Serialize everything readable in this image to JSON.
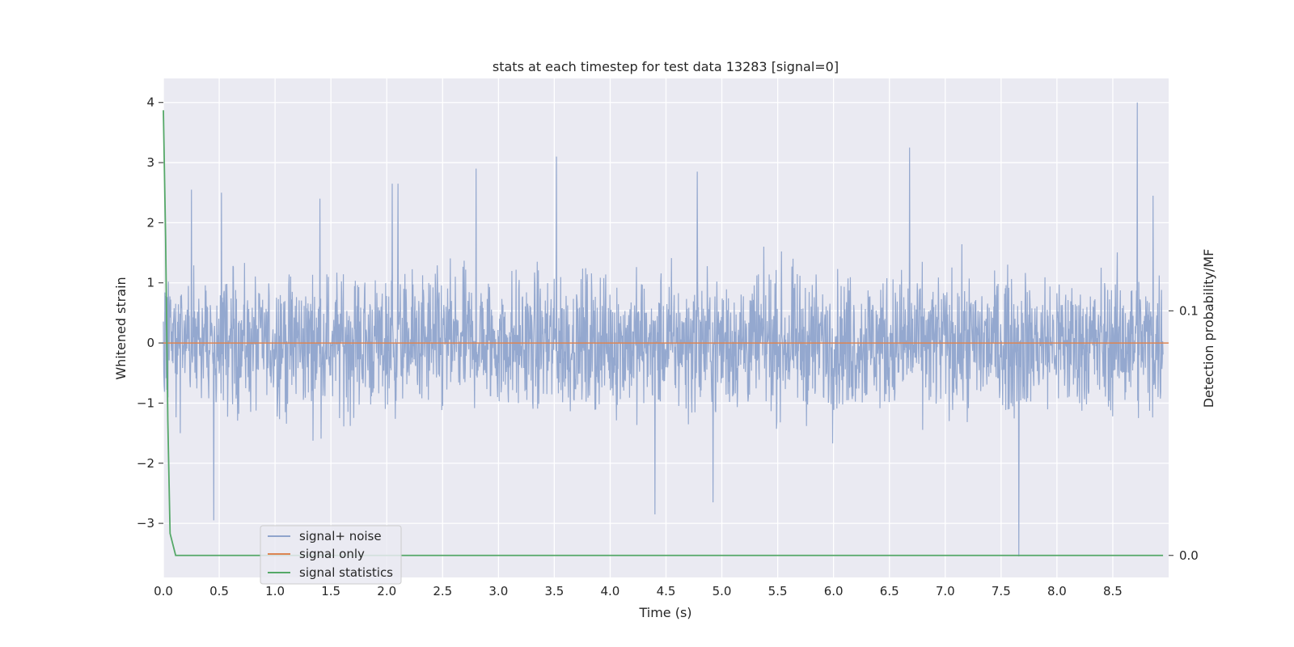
{
  "chart_data": {
    "type": "line",
    "title": "stats at each timestep for test data 13283 [signal=0]",
    "xlabel": "Time (s)",
    "ylabel": "Whitened strain",
    "y2label": "Detection probability/MF",
    "xlim": [
      0.0,
      9.0
    ],
    "ylim": [
      -3.9,
      4.4
    ],
    "y2lim": [
      -0.009,
      0.195
    ],
    "xticks": [
      "0.0",
      "0.5",
      "1.0",
      "1.5",
      "2.0",
      "2.5",
      "3.0",
      "3.5",
      "4.0",
      "4.5",
      "5.0",
      "5.5",
      "6.0",
      "6.5",
      "7.0",
      "7.5",
      "8.0",
      "8.5"
    ],
    "yticks": [
      "−3",
      "−2",
      "−1",
      "0",
      "1",
      "2",
      "3",
      "4"
    ],
    "y2ticks": [
      "0.0",
      "0.1"
    ],
    "grid": true,
    "legend_position": "lower-left",
    "colors": {
      "noise": "#8fa4cc",
      "signal": "#dd8452",
      "stats": "#55a868",
      "plot_bg": "#eaeaf2",
      "grid": "#ffffff"
    },
    "series": [
      {
        "name": "signal+ noise",
        "axis": "left",
        "description_values": "dense whitened strain noise centered at 0",
        "typical_range": [
          -1.5,
          1.5
        ],
        "extremes": [
          {
            "x": 0.25,
            "y": 2.55
          },
          {
            "x": 0.45,
            "y": -2.95
          },
          {
            "x": 0.52,
            "y": 2.5
          },
          {
            "x": 1.4,
            "y": 2.4
          },
          {
            "x": 2.05,
            "y": 2.65
          },
          {
            "x": 2.1,
            "y": 2.65
          },
          {
            "x": 2.8,
            "y": 2.9
          },
          {
            "x": 3.52,
            "y": 3.1
          },
          {
            "x": 4.78,
            "y": 2.85
          },
          {
            "x": 4.92,
            "y": -2.65
          },
          {
            "x": 6.68,
            "y": 3.25
          },
          {
            "x": 7.66,
            "y": -3.55
          },
          {
            "x": 8.72,
            "y": 4.0
          },
          {
            "x": 8.86,
            "y": 2.45
          },
          {
            "x": 4.4,
            "y": -2.85
          }
        ]
      },
      {
        "name": "signal only",
        "axis": "left",
        "x": [
          0.0,
          9.0
        ],
        "y": [
          0.0,
          0.0
        ]
      },
      {
        "name": "signal statistics",
        "axis": "right",
        "x": [
          0.0,
          0.02,
          0.04,
          0.06,
          0.11,
          0.5,
          1.0,
          2.0,
          3.0,
          4.0,
          5.0,
          6.0,
          7.0,
          8.0,
          8.95
        ],
        "y": [
          0.182,
          0.13,
          0.055,
          0.009,
          0.0,
          0.0,
          0.0,
          0.0,
          0.0,
          0.0,
          0.0,
          0.0,
          0.0,
          0.0,
          0.0
        ]
      }
    ]
  }
}
